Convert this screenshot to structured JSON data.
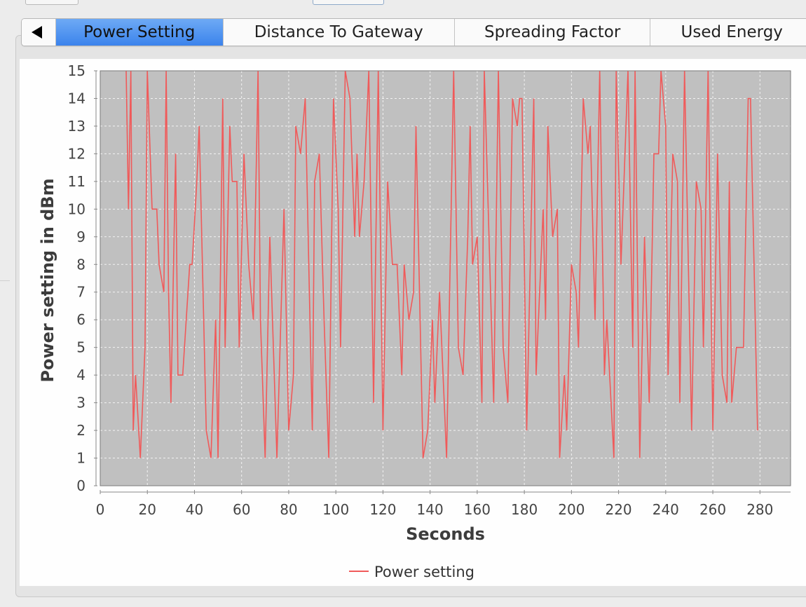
{
  "tabs": [
    {
      "label": "Power Setting",
      "active": true
    },
    {
      "label": "Distance To Gateway",
      "active": false
    },
    {
      "label": "Spreading Factor",
      "active": false
    },
    {
      "label": "Used Energy",
      "active": false
    }
  ],
  "colors": {
    "series": "#f05a5a",
    "plot_bg": "#c0c0c0",
    "grid": "#f2f2f2",
    "tab_active": "#4a8ff0"
  },
  "chart_data": {
    "type": "line",
    "title": "",
    "xlabel": "Seconds",
    "ylabel": "Power setting in dBm",
    "xlim": [
      0,
      293
    ],
    "ylim": [
      0,
      15
    ],
    "xticks": [
      0,
      20,
      40,
      60,
      80,
      100,
      120,
      140,
      160,
      180,
      200,
      220,
      240,
      260,
      280
    ],
    "yticks": [
      0,
      1,
      2,
      3,
      4,
      5,
      6,
      7,
      8,
      9,
      10,
      11,
      12,
      13,
      14,
      15
    ],
    "grid": true,
    "legend_position": "bottom",
    "series": [
      {
        "name": "Power setting",
        "color": "#f05a5a",
        "points": [
          [
            11,
            15
          ],
          [
            12,
            10
          ],
          [
            13,
            15
          ],
          [
            14,
            2
          ],
          [
            15,
            4
          ],
          [
            17,
            1
          ],
          [
            19,
            5
          ],
          [
            20,
            15
          ],
          [
            22,
            10
          ],
          [
            24,
            10
          ],
          [
            25,
            8
          ],
          [
            27,
            7
          ],
          [
            28,
            15
          ],
          [
            29,
            7
          ],
          [
            30,
            3
          ],
          [
            32,
            12
          ],
          [
            33,
            4
          ],
          [
            35,
            4
          ],
          [
            38,
            8
          ],
          [
            39,
            8
          ],
          [
            41,
            11
          ],
          [
            42,
            13
          ],
          [
            45,
            2
          ],
          [
            47,
            1
          ],
          [
            49,
            6
          ],
          [
            50,
            1
          ],
          [
            52,
            14
          ],
          [
            53,
            5
          ],
          [
            55,
            13
          ],
          [
            56,
            11
          ],
          [
            58,
            11
          ],
          [
            59,
            5
          ],
          [
            61,
            12
          ],
          [
            63,
            8
          ],
          [
            65,
            6
          ],
          [
            67,
            15
          ],
          [
            68,
            6
          ],
          [
            70,
            1
          ],
          [
            72,
            9
          ],
          [
            75,
            1
          ],
          [
            78,
            10
          ],
          [
            80,
            2
          ],
          [
            82,
            4
          ],
          [
            83,
            13
          ],
          [
            85,
            12
          ],
          [
            87,
            14
          ],
          [
            90,
            2
          ],
          [
            91,
            11
          ],
          [
            93,
            12
          ],
          [
            95,
            6
          ],
          [
            97,
            1
          ],
          [
            99,
            14
          ],
          [
            101,
            10
          ],
          [
            102,
            5
          ],
          [
            104,
            15
          ],
          [
            106,
            14
          ],
          [
            108,
            9
          ],
          [
            109,
            12
          ],
          [
            110,
            9
          ],
          [
            112,
            11
          ],
          [
            114,
            15
          ],
          [
            116,
            3
          ],
          [
            118,
            15
          ],
          [
            120,
            2
          ],
          [
            122,
            11
          ],
          [
            124,
            8
          ],
          [
            126,
            8
          ],
          [
            128,
            4
          ],
          [
            129,
            8
          ],
          [
            131,
            6
          ],
          [
            133,
            7
          ],
          [
            134,
            13
          ],
          [
            137,
            1
          ],
          [
            139,
            2
          ],
          [
            141,
            6
          ],
          [
            142,
            3
          ],
          [
            144,
            7
          ],
          [
            147,
            1
          ],
          [
            150,
            15
          ],
          [
            152,
            5
          ],
          [
            154,
            4
          ],
          [
            156,
            9
          ],
          [
            157,
            13
          ],
          [
            158,
            8
          ],
          [
            160,
            9
          ],
          [
            162,
            3
          ],
          [
            163,
            15
          ],
          [
            167,
            3
          ],
          [
            169,
            15
          ],
          [
            171,
            5
          ],
          [
            173,
            3
          ],
          [
            175,
            14
          ],
          [
            177,
            13
          ],
          [
            178,
            14
          ],
          [
            179,
            14
          ],
          [
            181,
            2
          ],
          [
            184,
            14
          ],
          [
            185,
            4
          ],
          [
            188,
            10
          ],
          [
            189,
            6
          ],
          [
            190,
            13
          ],
          [
            192,
            9
          ],
          [
            194,
            10
          ],
          [
            195,
            1
          ],
          [
            197,
            4
          ],
          [
            198,
            2
          ],
          [
            200,
            8
          ],
          [
            202,
            7
          ],
          [
            203,
            5
          ],
          [
            205,
            14
          ],
          [
            207,
            12
          ],
          [
            208,
            13
          ],
          [
            210,
            6
          ],
          [
            212,
            15
          ],
          [
            214,
            4
          ],
          [
            215,
            6
          ],
          [
            218,
            1
          ],
          [
            219,
            15
          ],
          [
            221,
            8
          ],
          [
            224,
            15
          ],
          [
            226,
            5
          ],
          [
            227,
            15
          ],
          [
            229,
            1
          ],
          [
            231,
            9
          ],
          [
            233,
            3
          ],
          [
            235,
            12
          ],
          [
            237,
            12
          ],
          [
            238,
            15
          ],
          [
            240,
            13
          ],
          [
            241,
            4
          ],
          [
            243,
            12
          ],
          [
            245,
            11
          ],
          [
            246,
            3
          ],
          [
            248,
            15
          ],
          [
            251,
            2
          ],
          [
            253,
            11
          ],
          [
            255,
            10
          ],
          [
            256,
            5
          ],
          [
            258,
            15
          ],
          [
            260,
            2
          ],
          [
            262,
            12
          ],
          [
            264,
            4
          ],
          [
            266,
            3
          ],
          [
            267,
            11
          ],
          [
            268,
            3
          ],
          [
            270,
            5
          ],
          [
            273,
            5
          ],
          [
            275,
            14
          ],
          [
            276,
            14
          ],
          [
            279,
            2
          ]
        ]
      }
    ]
  }
}
